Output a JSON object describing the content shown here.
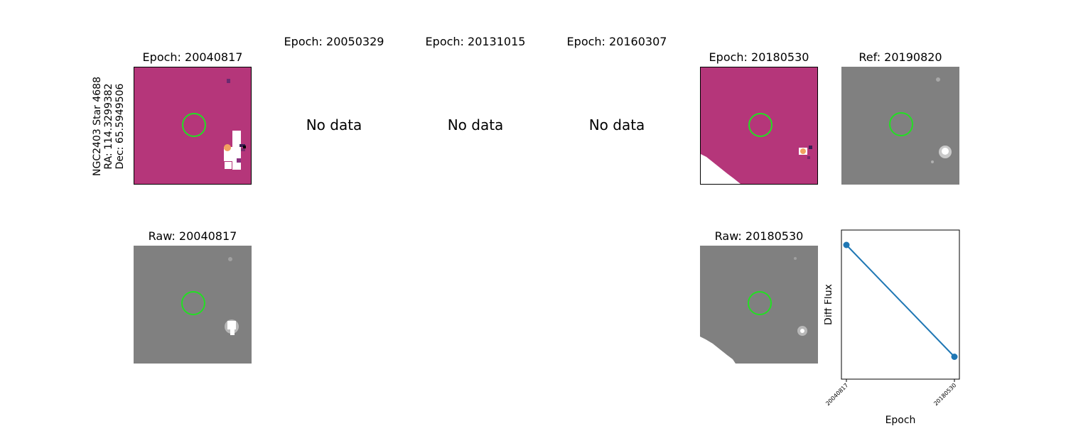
{
  "star_label": {
    "name": "NGC2403 Star 4688",
    "ra": "RA: 114.3299382",
    "dec": "Dec: 65.5949506"
  },
  "epochs": [
    {
      "title": "Epoch: 20040817",
      "raw_title": "Raw: 20040817",
      "has_data": true
    },
    {
      "title": "Epoch: 20050329",
      "no_data": "No data",
      "has_data": false
    },
    {
      "title": "Epoch: 20131015",
      "no_data": "No data",
      "has_data": false
    },
    {
      "title": "Epoch: 20160307",
      "no_data": "No data",
      "has_data": false
    },
    {
      "title": "Epoch: 20180530",
      "raw_title": "Raw: 20180530",
      "has_data": true
    }
  ],
  "reference": {
    "title": "Ref: 20190820"
  },
  "colors": {
    "diff_bg": "#b5367a",
    "ring": "#22e022",
    "raw_bg": "#808080",
    "series": "#1f77b4"
  },
  "chart_data": {
    "type": "line",
    "x": [
      "20040817",
      "20180530"
    ],
    "series": [
      {
        "values": [
          0.9,
          0.15
        ]
      }
    ],
    "xlabel": "Epoch",
    "ylabel": "Diff Flux",
    "ylim": [
      0,
      1
    ],
    "grid": false
  }
}
